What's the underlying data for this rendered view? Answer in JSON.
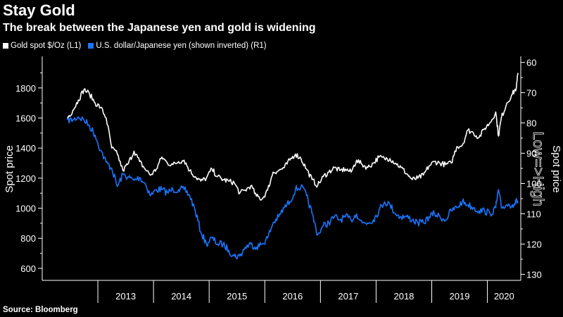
{
  "header": {
    "title": "Stay Gold",
    "subtitle": "The break between the Japanese yen and gold is widening"
  },
  "legend": {
    "gold_label": "Gold spot $/Oz (L1)",
    "yen_label": "U.S. dollar/Japanese yen (shown inverted) (R1)"
  },
  "footer": {
    "source": "Source: Bloomberg"
  },
  "colors": {
    "gold": "#ffffff",
    "yen": "#1a75ff",
    "background": "#000000",
    "axis": "#ffffff"
  },
  "chart_data": {
    "type": "line",
    "title": "Stay Gold",
    "subtitle": "The break between the Japanese yen and gold is widening",
    "xlabel": "",
    "ylabel": "Spot price",
    "y2label": "Spot price",
    "y2_annotation": "Low=>High",
    "x_range": [
      2012.0,
      2020.6
    ],
    "ylim": [
      520,
      2010
    ],
    "y2lim": [
      132,
      58
    ],
    "y2_inverted": true,
    "y_ticks": [
      600,
      800,
      1000,
      1200,
      1400,
      1600,
      1800
    ],
    "y2_ticks": [
      60,
      70,
      80,
      90,
      100,
      110,
      120,
      130
    ],
    "x_tick_labels": [
      "2013",
      "2014",
      "2015",
      "2016",
      "2017",
      "2018",
      "2019",
      "2020"
    ],
    "x_tick_centers": [
      2013.5,
      2014.5,
      2015.5,
      2016.5,
      2017.5,
      2018.5,
      2019.5,
      2020.3
    ],
    "year_boundaries": [
      2013,
      2014,
      2015,
      2016,
      2017,
      2018,
      2019,
      2020
    ],
    "series": [
      {
        "name": "Gold spot $/Oz (L1)",
        "axis": "left",
        "color": "#ffffff",
        "points": [
          [
            2012.45,
            1600
          ],
          [
            2012.55,
            1650
          ],
          [
            2012.65,
            1720
          ],
          [
            2012.75,
            1790
          ],
          [
            2012.85,
            1760
          ],
          [
            2012.95,
            1700
          ],
          [
            2013.05,
            1670
          ],
          [
            2013.15,
            1600
          ],
          [
            2013.25,
            1400
          ],
          [
            2013.35,
            1360
          ],
          [
            2013.45,
            1250
          ],
          [
            2013.55,
            1300
          ],
          [
            2013.65,
            1380
          ],
          [
            2013.75,
            1310
          ],
          [
            2013.85,
            1260
          ],
          [
            2013.95,
            1220
          ],
          [
            2014.05,
            1260
          ],
          [
            2014.15,
            1340
          ],
          [
            2014.25,
            1300
          ],
          [
            2014.35,
            1290
          ],
          [
            2014.45,
            1310
          ],
          [
            2014.55,
            1320
          ],
          [
            2014.65,
            1250
          ],
          [
            2014.75,
            1210
          ],
          [
            2014.85,
            1180
          ],
          [
            2014.95,
            1200
          ],
          [
            2015.05,
            1260
          ],
          [
            2015.15,
            1210
          ],
          [
            2015.25,
            1190
          ],
          [
            2015.35,
            1180
          ],
          [
            2015.45,
            1170
          ],
          [
            2015.55,
            1100
          ],
          [
            2015.65,
            1120
          ],
          [
            2015.75,
            1150
          ],
          [
            2015.85,
            1080
          ],
          [
            2015.95,
            1060
          ],
          [
            2016.05,
            1120
          ],
          [
            2016.15,
            1240
          ],
          [
            2016.25,
            1250
          ],
          [
            2016.35,
            1270
          ],
          [
            2016.45,
            1320
          ],
          [
            2016.55,
            1360
          ],
          [
            2016.65,
            1330
          ],
          [
            2016.75,
            1260
          ],
          [
            2016.85,
            1190
          ],
          [
            2016.95,
            1150
          ],
          [
            2017.05,
            1210
          ],
          [
            2017.15,
            1240
          ],
          [
            2017.25,
            1270
          ],
          [
            2017.35,
            1250
          ],
          [
            2017.45,
            1260
          ],
          [
            2017.55,
            1240
          ],
          [
            2017.65,
            1320
          ],
          [
            2017.75,
            1290
          ],
          [
            2017.85,
            1270
          ],
          [
            2017.95,
            1300
          ],
          [
            2018.05,
            1340
          ],
          [
            2018.15,
            1330
          ],
          [
            2018.25,
            1330
          ],
          [
            2018.35,
            1300
          ],
          [
            2018.45,
            1270
          ],
          [
            2018.55,
            1230
          ],
          [
            2018.65,
            1190
          ],
          [
            2018.75,
            1200
          ],
          [
            2018.85,
            1220
          ],
          [
            2018.95,
            1280
          ],
          [
            2019.05,
            1310
          ],
          [
            2019.15,
            1300
          ],
          [
            2019.25,
            1290
          ],
          [
            2019.35,
            1300
          ],
          [
            2019.45,
            1410
          ],
          [
            2019.55,
            1420
          ],
          [
            2019.65,
            1520
          ],
          [
            2019.75,
            1500
          ],
          [
            2019.85,
            1470
          ],
          [
            2019.95,
            1530
          ],
          [
            2020.05,
            1570
          ],
          [
            2020.15,
            1640
          ],
          [
            2020.2,
            1480
          ],
          [
            2020.25,
            1600
          ],
          [
            2020.35,
            1700
          ],
          [
            2020.45,
            1760
          ],
          [
            2020.52,
            1800
          ],
          [
            2020.55,
            1900
          ]
        ]
      },
      {
        "name": "U.S. dollar/Japanese yen (shown inverted) (R1)",
        "axis": "right",
        "color": "#1a75ff",
        "points": [
          [
            2012.45,
            79
          ],
          [
            2012.55,
            79
          ],
          [
            2012.65,
            78
          ],
          [
            2012.75,
            79
          ],
          [
            2012.85,
            81
          ],
          [
            2012.95,
            84
          ],
          [
            2013.05,
            89
          ],
          [
            2013.15,
            93
          ],
          [
            2013.25,
            95
          ],
          [
            2013.35,
            101
          ],
          [
            2013.45,
            97
          ],
          [
            2013.55,
            98
          ],
          [
            2013.65,
            99
          ],
          [
            2013.75,
            98
          ],
          [
            2013.85,
            100
          ],
          [
            2013.95,
            104
          ],
          [
            2014.05,
            102
          ],
          [
            2014.15,
            102
          ],
          [
            2014.25,
            103
          ],
          [
            2014.35,
            102
          ],
          [
            2014.45,
            102
          ],
          [
            2014.55,
            102
          ],
          [
            2014.65,
            104
          ],
          [
            2014.75,
            109
          ],
          [
            2014.85,
            116
          ],
          [
            2014.95,
            120
          ],
          [
            2015.05,
            118
          ],
          [
            2015.15,
            120
          ],
          [
            2015.25,
            120
          ],
          [
            2015.35,
            122
          ],
          [
            2015.45,
            124
          ],
          [
            2015.55,
            124
          ],
          [
            2015.65,
            121
          ],
          [
            2015.75,
            120
          ],
          [
            2015.85,
            121
          ],
          [
            2015.95,
            120
          ],
          [
            2016.05,
            118
          ],
          [
            2016.15,
            113
          ],
          [
            2016.25,
            111
          ],
          [
            2016.35,
            108
          ],
          [
            2016.45,
            106
          ],
          [
            2016.55,
            102
          ],
          [
            2016.65,
            101
          ],
          [
            2016.75,
            104
          ],
          [
            2016.85,
            110
          ],
          [
            2016.95,
            117
          ],
          [
            2017.05,
            114
          ],
          [
            2017.15,
            113
          ],
          [
            2017.25,
            111
          ],
          [
            2017.35,
            112
          ],
          [
            2017.45,
            111
          ],
          [
            2017.55,
            112
          ],
          [
            2017.65,
            110
          ],
          [
            2017.75,
            113
          ],
          [
            2017.85,
            113
          ],
          [
            2017.95,
            112
          ],
          [
            2018.05,
            109
          ],
          [
            2018.15,
            106
          ],
          [
            2018.25,
            107
          ],
          [
            2018.35,
            110
          ],
          [
            2018.45,
            111
          ],
          [
            2018.55,
            111
          ],
          [
            2018.65,
            112
          ],
          [
            2018.75,
            113
          ],
          [
            2018.85,
            113
          ],
          [
            2018.95,
            111
          ],
          [
            2019.05,
            110
          ],
          [
            2019.15,
            111
          ],
          [
            2019.25,
            112
          ],
          [
            2019.35,
            109
          ],
          [
            2019.45,
            108
          ],
          [
            2019.55,
            106
          ],
          [
            2019.65,
            107
          ],
          [
            2019.75,
            108
          ],
          [
            2019.85,
            109
          ],
          [
            2019.95,
            109
          ],
          [
            2020.05,
            110
          ],
          [
            2020.15,
            108
          ],
          [
            2020.2,
            102
          ],
          [
            2020.25,
            108
          ],
          [
            2020.35,
            107
          ],
          [
            2020.45,
            107
          ],
          [
            2020.52,
            106
          ],
          [
            2020.55,
            106
          ]
        ]
      }
    ]
  }
}
